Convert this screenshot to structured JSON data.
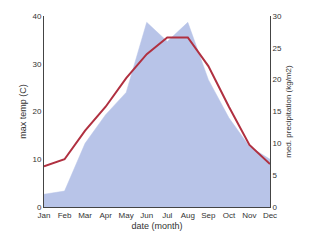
{
  "chart_data": {
    "type": "line",
    "xlabel": "date (month)",
    "ylabel": "max temp (C)",
    "y2label": "med. precipitation (kg/m2)",
    "categories": [
      "Jan",
      "Feb",
      "Mar",
      "Apr",
      "May",
      "Jun",
      "Jul",
      "Aug",
      "Sep",
      "Oct",
      "Nov",
      "Dec"
    ],
    "series": [
      {
        "type": "area",
        "color": "#b8c4e8",
        "axis": "y2",
        "values": [
          2.0,
          2.5,
          10.0,
          14.5,
          18.0,
          29.0,
          26.0,
          29.0,
          20.0,
          14.0,
          9.5,
          7.5
        ]
      },
      {
        "type": "line",
        "color": "#b03040",
        "values": [
          8.5,
          10.0,
          16.0,
          21.0,
          27.0,
          32.0,
          35.5,
          35.5,
          29.5,
          21.0,
          13.0,
          9.0
        ]
      }
    ],
    "ylim": [
      0,
      40
    ],
    "yticks": [
      0,
      10,
      20,
      30,
      40
    ],
    "y2lim": [
      0,
      30
    ],
    "y2ticks": [
      0,
      5,
      10,
      15,
      20,
      25,
      30
    ],
    "grid": false
  }
}
